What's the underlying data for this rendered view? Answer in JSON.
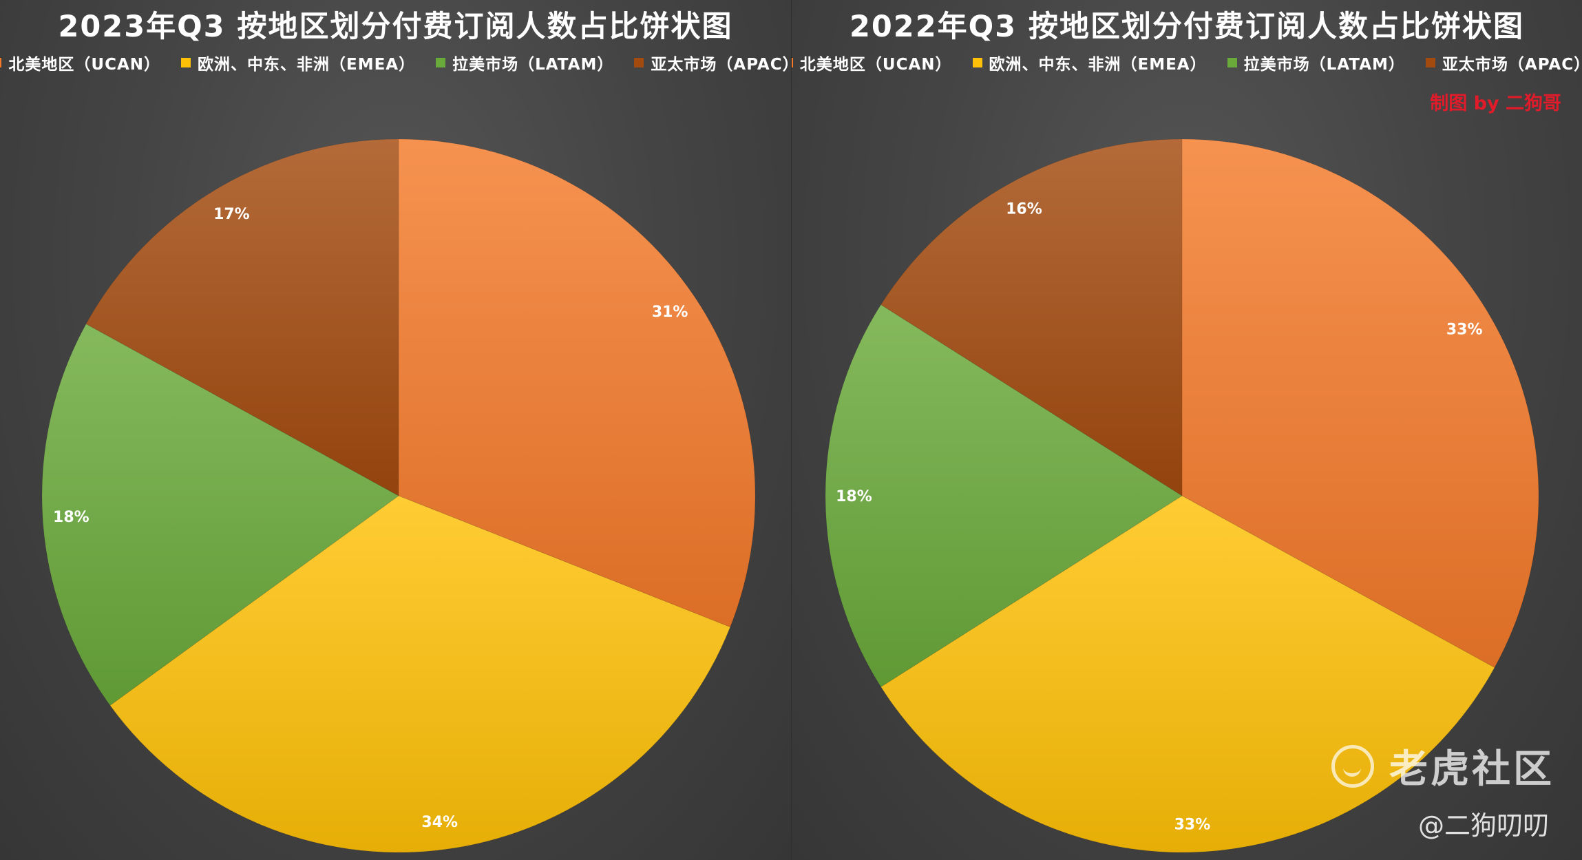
{
  "chart_data": [
    {
      "type": "pie",
      "title": "2023年Q3 按地区划分付费订阅人数占比饼状图",
      "legend_position": "top",
      "categories": [
        "北美地区（UCAN）",
        "欧洲、中东、非洲（EMEA）",
        "拉美市场（LATAM）",
        "亚太市场（APAC）"
      ],
      "values": [
        31,
        34,
        18,
        17
      ],
      "value_labels": [
        "31%",
        "34%",
        "18%",
        "17%"
      ],
      "colors": [
        "#f47a2a",
        "#ffc107",
        "#6aaa3a",
        "#a34a0e"
      ]
    },
    {
      "type": "pie",
      "title": "2022年Q3 按地区划分付费订阅人数占比饼状图",
      "legend_position": "top",
      "categories": [
        "北美地区（UCAN）",
        "欧洲、中东、非洲（EMEA）",
        "拉美市场（LATAM）",
        "亚太市场（APAC）"
      ],
      "values": [
        33,
        33,
        18,
        16
      ],
      "value_labels": [
        "33%",
        "33%",
        "18%",
        "16%"
      ],
      "colors": [
        "#f47a2a",
        "#ffc107",
        "#6aaa3a",
        "#a34a0e"
      ]
    }
  ],
  "credit": "制图 by 二狗哥",
  "watermark": {
    "logo_icon": "tiger-logo-icon",
    "brand": "老虎社区",
    "handle": "@二狗叨叨"
  }
}
